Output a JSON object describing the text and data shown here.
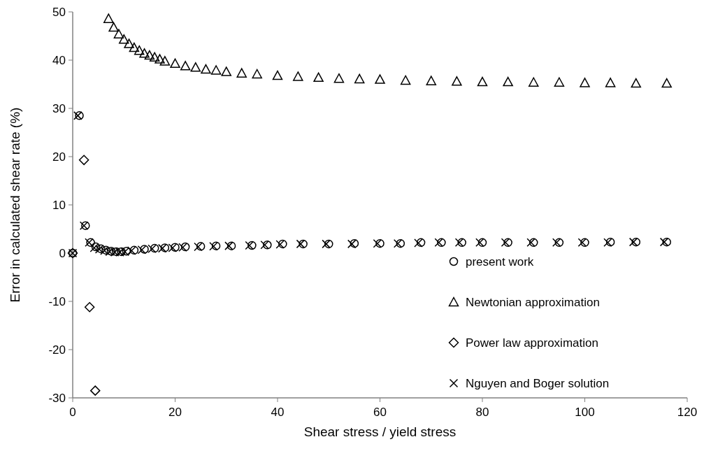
{
  "chart_data": {
    "type": "scatter",
    "xlabel": "Shear stress / yield stress",
    "ylabel": "Error in calculated shear rate (%)",
    "xlim": [
      0,
      120
    ],
    "xticks": [
      0,
      20,
      40,
      60,
      80,
      100,
      120
    ],
    "ylim": [
      -30,
      50
    ],
    "yticks": [
      -30,
      -20,
      -10,
      0,
      10,
      20,
      30,
      40,
      50
    ],
    "grid": false,
    "legend": "bottom right",
    "series": [
      {
        "name": "present work",
        "color": "#000000",
        "marker": "circle",
        "x": [
          0,
          1.3,
          2.5,
          3.5,
          4.5,
          5.5,
          6.5,
          7.5,
          8.5,
          9.5,
          10.5,
          12,
          14,
          16,
          18,
          20,
          22,
          25,
          28,
          31,
          35,
          38,
          41,
          45,
          50,
          55,
          60,
          64,
          68,
          72,
          76,
          80,
          85,
          90,
          95,
          100,
          105,
          110,
          116
        ],
        "values": [
          0,
          28.5,
          5.7,
          2.2,
          1.3,
          0.9,
          0.6,
          0.4,
          0.3,
          0.3,
          0.4,
          0.6,
          0.8,
          1,
          1.1,
          1.2,
          1.3,
          1.4,
          1.5,
          1.5,
          1.6,
          1.7,
          1.9,
          1.9,
          1.9,
          2,
          2,
          2,
          2.2,
          2.2,
          2.2,
          2.2,
          2.2,
          2.2,
          2.2,
          2.2,
          2.3,
          2.3,
          2.3
        ]
      },
      {
        "name": "Newtonian approximation",
        "color": "#000000",
        "marker": "triangle",
        "x": [
          7,
          8,
          9,
          10,
          11,
          12,
          13,
          14,
          15,
          16,
          17,
          18,
          20,
          22,
          24,
          26,
          28,
          30,
          33,
          36,
          40,
          44,
          48,
          52,
          56,
          60,
          65,
          70,
          75,
          80,
          85,
          90,
          95,
          100,
          105,
          110,
          116
        ],
        "values": [
          48.6,
          46.8,
          45.4,
          44.3,
          43.4,
          42.6,
          42,
          41.4,
          41,
          40.6,
          40.2,
          39.8,
          39.3,
          38.8,
          38.5,
          38.1,
          37.9,
          37.6,
          37.3,
          37.1,
          36.8,
          36.6,
          36.4,
          36.2,
          36.1,
          36,
          35.8,
          35.7,
          35.6,
          35.5,
          35.5,
          35.4,
          35.4,
          35.3,
          35.3,
          35.2,
          35.2
        ]
      },
      {
        "name": "Power law approximation",
        "color": "#000000",
        "marker": "diamond",
        "x": [
          0,
          2.2,
          3.3,
          4.4
        ],
        "values": [
          0,
          19.3,
          -11.2,
          -28.5
        ]
      },
      {
        "name": "Nguyen and Boger solution",
        "color": "#000000",
        "marker": "cross",
        "x": [
          0,
          1,
          2.2,
          3.2,
          4.2,
          5.2,
          6.2,
          7.2,
          8.2,
          9.2,
          10.2,
          11.5,
          13.5,
          15.5,
          17.5,
          19.5,
          21.5,
          24.5,
          27.5,
          30.5,
          34.5,
          37.5,
          40.5,
          44.5,
          49.5,
          54.5,
          59.5,
          63.5,
          67.5,
          71.5,
          75.5,
          79.5,
          84.5,
          89.5,
          94.5,
          99.5,
          104.5,
          109.5,
          115.5
        ],
        "values": [
          0,
          28.5,
          5.7,
          2.2,
          1.1,
          0.8,
          0.5,
          0.3,
          0.2,
          0.2,
          0.3,
          0.5,
          0.7,
          0.9,
          1,
          1.1,
          1.2,
          1.3,
          1.4,
          1.5,
          1.6,
          1.7,
          1.8,
          1.9,
          1.9,
          1.9,
          2,
          2,
          2.1,
          2.2,
          2.2,
          2.2,
          2.2,
          2.2,
          2.2,
          2.2,
          2.2,
          2.3,
          2.3
        ]
      }
    ]
  }
}
